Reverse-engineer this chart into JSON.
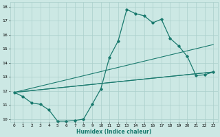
{
  "xlabel": "Humidex (Indice chaleur)",
  "xlim": [
    -0.5,
    23.5
  ],
  "ylim": [
    9.8,
    18.3
  ],
  "xticks": [
    0,
    1,
    2,
    3,
    4,
    5,
    6,
    7,
    8,
    9,
    10,
    11,
    12,
    13,
    14,
    15,
    16,
    17,
    18,
    19,
    20,
    21,
    22,
    23
  ],
  "yticks": [
    10,
    11,
    12,
    13,
    14,
    15,
    16,
    17,
    18
  ],
  "bg_color": "#cce8e4",
  "grid_color": "#aacfcb",
  "line_color": "#1a7a6e",
  "curved_series": {
    "x": [
      0,
      1,
      2,
      3,
      4,
      5,
      6,
      7,
      8,
      9,
      10,
      11,
      12,
      13,
      14,
      15,
      16,
      17,
      18,
      19,
      20,
      21,
      22,
      23
    ],
    "y": [
      11.9,
      11.6,
      11.15,
      11.05,
      10.65,
      9.85,
      9.85,
      9.9,
      10.0,
      11.05,
      12.15,
      14.4,
      15.55,
      17.8,
      17.5,
      17.35,
      16.85,
      17.1,
      15.75,
      15.2,
      14.45,
      13.1,
      13.15,
      13.35
    ],
    "marker": "D",
    "markersize": 1.8,
    "linewidth": 0.9
  },
  "straight_lines": [
    {
      "x": [
        0,
        23
      ],
      "y": [
        11.9,
        15.3
      ]
    },
    {
      "x": [
        0,
        23
      ],
      "y": [
        11.9,
        13.35
      ]
    },
    {
      "x": [
        0,
        23
      ],
      "y": [
        11.9,
        13.35
      ]
    }
  ],
  "line_width": 0.8
}
